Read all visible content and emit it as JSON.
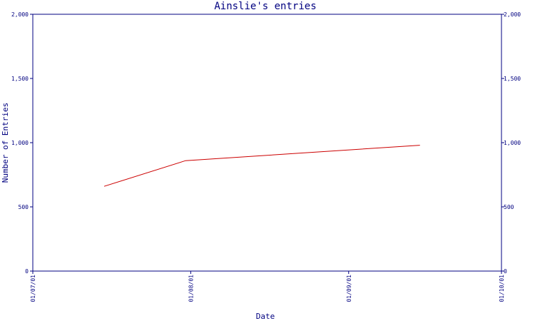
{
  "chart_data": {
    "type": "line",
    "title": "Ainslie's entries",
    "xlabel": "Date",
    "ylabel": "Number of Entries",
    "x_ticks": [
      "01/07/01",
      "01/08/01",
      "01/09/01",
      "01/10/01"
    ],
    "x_range": [
      "01/07/01",
      "01/10/01"
    ],
    "y_ticks": [
      "0",
      "500",
      "1,000",
      "1,500",
      "2,000"
    ],
    "y_range": [
      0,
      2000
    ],
    "grid": false,
    "series": [
      {
        "x": [
          "2001-07-15",
          "2001-07-31",
          "2001-09-15"
        ],
        "y": [
          660,
          860,
          980
        ]
      }
    ],
    "colors": {
      "frame": "#000080",
      "text": "#000080",
      "series": "#cc0000"
    }
  }
}
